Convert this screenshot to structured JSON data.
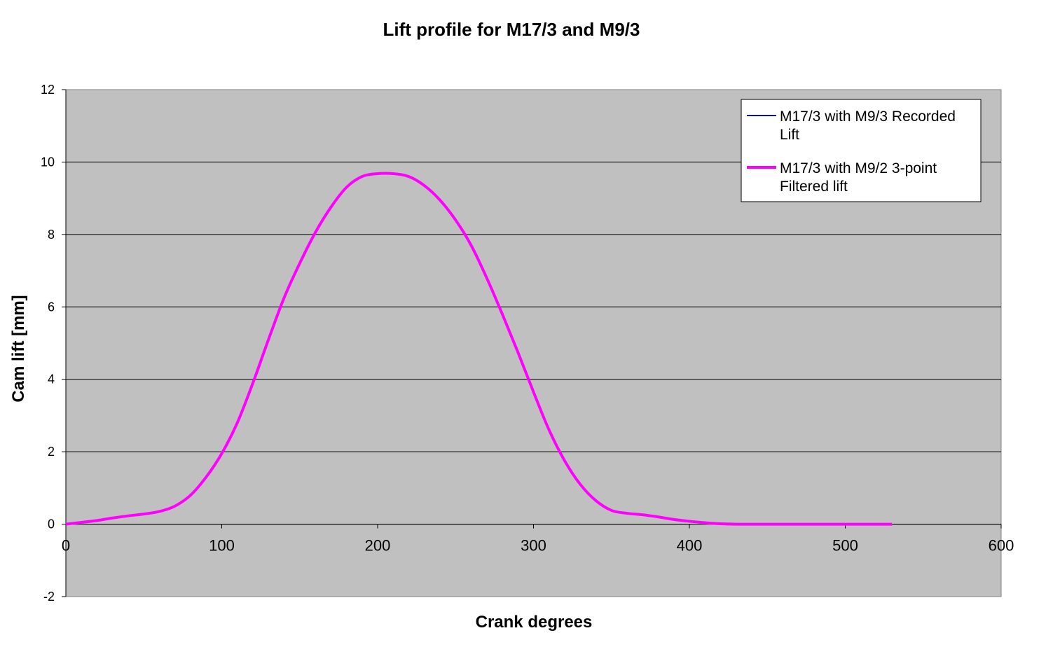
{
  "chart_data": {
    "type": "line",
    "title": "Lift profile  for  M17/3  and  M9/3",
    "xlabel": "Crank degrees",
    "ylabel": "Cam lift [mm]",
    "xlim": [
      0,
      600
    ],
    "ylim": [
      -2,
      12
    ],
    "xticks": [
      "0",
      "100",
      "200",
      "300",
      "400",
      "500",
      "600"
    ],
    "yticks": [
      "-2",
      "0",
      "2",
      "4",
      "6",
      "8",
      "10",
      "12"
    ],
    "grid": "horizontal",
    "legend_position": "top-right",
    "plot_background": "#c0c0c0",
    "series": [
      {
        "name": "M17/3 with M9/3 Recorded Lift",
        "legend_lines": [
          "M17/3 with M9/3 Recorded",
          "Lift"
        ],
        "color": "#000080",
        "x": [],
        "y": []
      },
      {
        "name": "M17/3 with M9/2  3-point Filtered lift",
        "legend_lines": [
          "M17/3 with M9/2  3-point",
          "Filtered lift"
        ],
        "color": "#ff00ff",
        "x": [
          0,
          10,
          20,
          30,
          40,
          50,
          60,
          70,
          80,
          90,
          100,
          110,
          120,
          130,
          140,
          150,
          160,
          170,
          180,
          190,
          200,
          210,
          220,
          230,
          240,
          250,
          260,
          270,
          280,
          290,
          300,
          310,
          320,
          330,
          340,
          350,
          360,
          370,
          380,
          390,
          400,
          410,
          420,
          430,
          440,
          450,
          460,
          470,
          480,
          490,
          500,
          510,
          520,
          530
        ],
        "y": [
          0,
          0.05,
          0.1,
          0.17,
          0.23,
          0.28,
          0.35,
          0.5,
          0.8,
          1.3,
          1.95,
          2.8,
          3.9,
          5.1,
          6.25,
          7.2,
          8.05,
          8.75,
          9.3,
          9.6,
          9.68,
          9.68,
          9.6,
          9.35,
          8.95,
          8.4,
          7.7,
          6.8,
          5.8,
          4.75,
          3.65,
          2.6,
          1.75,
          1.1,
          0.65,
          0.38,
          0.3,
          0.26,
          0.2,
          0.13,
          0.08,
          0.04,
          0.01,
          0,
          0,
          0,
          0,
          0,
          0,
          0,
          0,
          0,
          0,
          0
        ]
      }
    ]
  }
}
